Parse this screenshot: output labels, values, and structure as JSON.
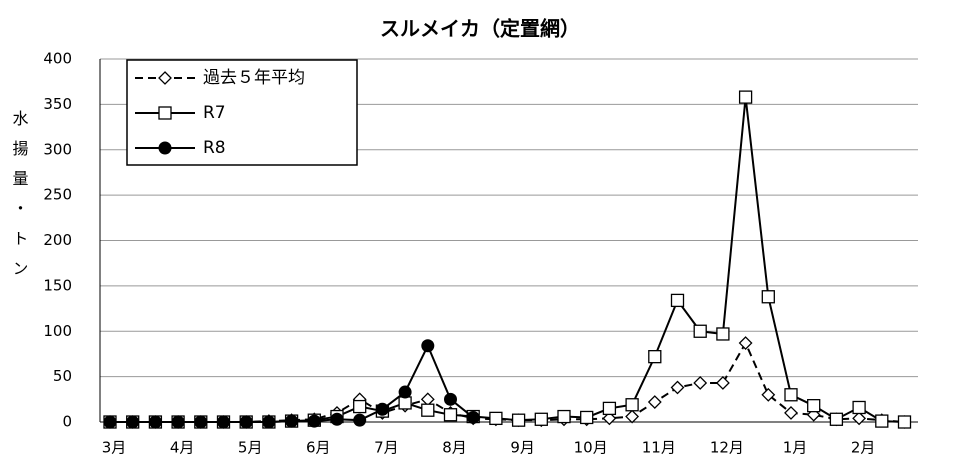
{
  "chart_data": {
    "type": "line",
    "title": "スルメイカ（定置網）",
    "y_label": "水揚量・トン",
    "categories": [
      "3月",
      null,
      null,
      "4月",
      null,
      null,
      "5月",
      null,
      null,
      "6月",
      null,
      null,
      "7月",
      null,
      null,
      "8月",
      null,
      null,
      "9月",
      null,
      null,
      "10月",
      null,
      null,
      "11月",
      null,
      null,
      "12月",
      null,
      null,
      "1月",
      null,
      null,
      "2月",
      null,
      null
    ],
    "ylim": [
      0,
      400
    ],
    "yticks": [
      0,
      50,
      100,
      150,
      200,
      250,
      300,
      350,
      400
    ],
    "grid": true,
    "legend": "top-left",
    "series": [
      {
        "name": "過去５年平均",
        "color": "#000000",
        "marker": "diamond",
        "dashed": true,
        "values": [
          0,
          0,
          0,
          0,
          0,
          0,
          0,
          1,
          2,
          3,
          10,
          25,
          10,
          18,
          25,
          10,
          4,
          3,
          2,
          2,
          3,
          3,
          4,
          6,
          22,
          38,
          43,
          43,
          87,
          30,
          10,
          8,
          3,
          4,
          2,
          0
        ]
      },
      {
        "name": "R7",
        "color": "#000000",
        "marker": "square",
        "dashed": false,
        "values": [
          0,
          0,
          0,
          0,
          0,
          0,
          0,
          0,
          1,
          2,
          6,
          17,
          12,
          21,
          13,
          8,
          6,
          4,
          2,
          3,
          6,
          5,
          15,
          19,
          72,
          134,
          100,
          97,
          358,
          138,
          30,
          18,
          3,
          16,
          1,
          0
        ]
      },
      {
        "name": "R8",
        "color": "#000000",
        "marker": "circle",
        "dashed": false,
        "values": [
          0,
          0,
          0,
          0,
          0,
          0,
          0,
          0,
          1,
          1,
          3,
          2,
          14,
          33,
          84,
          25,
          5,
          null,
          null,
          null,
          null,
          null,
          null,
          null,
          null,
          null,
          null,
          null,
          null,
          null,
          null,
          null,
          null,
          null,
          null,
          null
        ]
      }
    ]
  }
}
